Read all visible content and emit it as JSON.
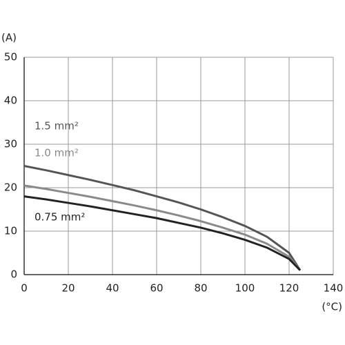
{
  "chart_data": {
    "type": "line",
    "y_label": "(A)",
    "x_label": "(°C)",
    "x": [
      0,
      10,
      20,
      30,
      40,
      50,
      60,
      70,
      80,
      90,
      100,
      110,
      120,
      125
    ],
    "series": [
      {
        "name": "1.5 mm²",
        "color": "#555555",
        "values": [
          25,
          24.0,
          22.9,
          21.8,
          20.6,
          19.4,
          18.0,
          16.6,
          15.0,
          13.2,
          11.2,
          8.7,
          5.0,
          1
        ]
      },
      {
        "name": "1.0 mm²",
        "color": "#8a8a8a",
        "values": [
          20.5,
          19.7,
          18.8,
          17.9,
          16.9,
          15.9,
          14.8,
          13.6,
          12.3,
          10.8,
          9.2,
          7.1,
          4.1,
          1
        ]
      },
      {
        "name": "0.75 mm²",
        "color": "#222222",
        "values": [
          18,
          17.3,
          16.5,
          15.7,
          14.8,
          13.9,
          13.0,
          11.9,
          10.8,
          9.5,
          8.0,
          6.2,
          3.6,
          1
        ]
      }
    ],
    "xlim": [
      0,
      140
    ],
    "xticks": [
      0,
      20,
      40,
      60,
      80,
      100,
      120,
      140
    ],
    "ylim": [
      0,
      50
    ],
    "yticks": [
      0,
      10,
      20,
      30,
      40,
      50
    ],
    "grid": true
  }
}
